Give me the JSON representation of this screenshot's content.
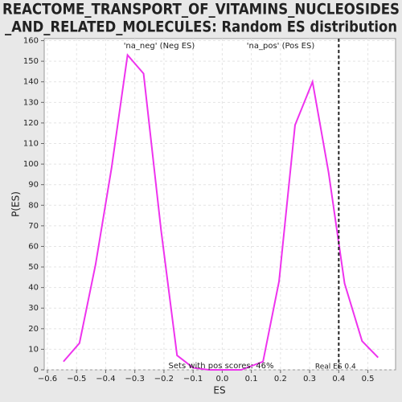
{
  "chart_data": {
    "type": "line",
    "title": [
      "REACTOME_TRANSPORT_OF_VITAMINS_NUCLEOSIDES",
      "_AND_RELATED_MOLECULES: Random ES distribution"
    ],
    "x_label": "ES",
    "y_label": "P(ES)",
    "x": [
      -0.545,
      -0.49,
      -0.435,
      -0.38,
      -0.325,
      -0.27,
      -0.21,
      -0.155,
      -0.1,
      -0.045,
      0.01,
      0.065,
      0.14,
      0.195,
      0.25,
      0.31,
      0.365,
      0.42,
      0.48,
      0.535
    ],
    "series": [
      {
        "name": "P(ES)",
        "color": "#ee33ee",
        "values": [
          4,
          13,
          51,
          98,
          153,
          144,
          68,
          7,
          1,
          0,
          0,
          0,
          4,
          43,
          119,
          140,
          96,
          42,
          14,
          6
        ]
      }
    ],
    "xlim": [
      -0.611,
      0.595
    ],
    "ylim": [
      0,
      161
    ],
    "xticks": [
      {
        "value": -0.6,
        "label": "−0.6"
      },
      {
        "value": -0.5,
        "label": "−0.5"
      },
      {
        "value": -0.4,
        "label": "−0.4"
      },
      {
        "value": -0.3,
        "label": "−0.3"
      },
      {
        "value": -0.2,
        "label": "−0.2"
      },
      {
        "value": -0.1,
        "label": "−0.1"
      },
      {
        "value": 0,
        "label": "0.0"
      },
      0.1,
      0.2,
      0.3,
      0.4,
      0.5
    ],
    "yticks": [
      0,
      10,
      20,
      30,
      40,
      50,
      60,
      70,
      80,
      90,
      100,
      110,
      120,
      130,
      140,
      150,
      160
    ],
    "grid": true,
    "real_es": {
      "value": 0.4,
      "label": "Real ES 0.4"
    },
    "annotations": [
      {
        "text": "'na_neg' (Neg ES)",
        "color": "#4444cc"
      },
      {
        "text": "'na_pos' (Pos ES)",
        "color": "#dd3333"
      },
      {
        "text": "Sets with pos scores: 46%",
        "color": "#333333"
      }
    ]
  }
}
